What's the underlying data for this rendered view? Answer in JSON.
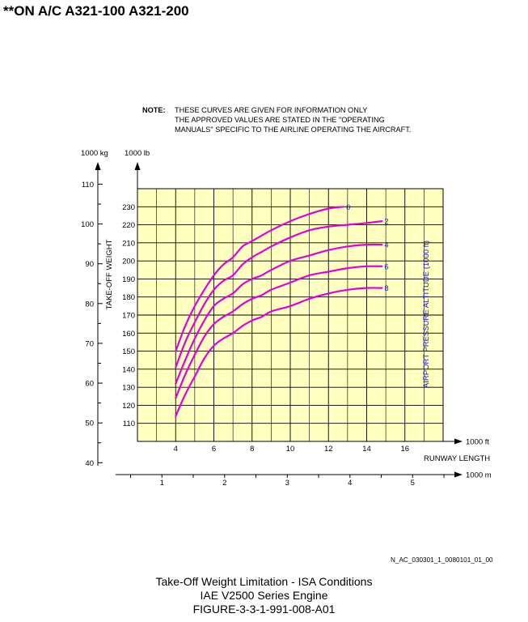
{
  "header": {
    "applicability": "**ON A/C A321-100 A321-200"
  },
  "note": {
    "label": "NOTE:",
    "lines": [
      "THESE CURVES ARE GIVEN FOR INFORMATION ONLY",
      "THE APPROVED VALUES ARE STATED IN THE \"OPERATING",
      "MANUALS\" SPECIFIC TO THE AIRLINE OPERATING THE AIRCRAFT."
    ]
  },
  "colors": {
    "grid_fill": "#ffffc0",
    "curve": "#e000e0",
    "curve_label": "#1a1ad0",
    "axis": "#000000"
  },
  "chart_data": {
    "type": "line",
    "title": "Take-Off Weight Limitation - ISA Conditions",
    "xlabel": "RUNWAY LENGTH",
    "ylabel": "TAKE-OFF WEIGHT",
    "legend_title": "AIRPORT PRESSURE ALTITUDE (1000 ft)",
    "x_unit_primary": "1000 ft",
    "x_unit_secondary": "1000 m",
    "y_unit_primary": "1000 lb",
    "y_unit_secondary": "1000 kg",
    "xlim_ft": [
      2,
      18
    ],
    "ylim_lb": [
      100,
      240
    ],
    "x_ticks_ft": [
      "4",
      "6",
      "8",
      "10",
      "12",
      "14",
      "16"
    ],
    "x_ticks_m": [
      "1",
      "2",
      "3",
      "4",
      "5"
    ],
    "y_ticks_lb": [
      "110",
      "120",
      "130",
      "140",
      "150",
      "160",
      "170",
      "180",
      "190",
      "200",
      "210",
      "220",
      "230"
    ],
    "y_ticks_kg": [
      "40",
      "50",
      "60",
      "70",
      "80",
      "90",
      "100",
      "110"
    ],
    "grid": true,
    "series": [
      {
        "name": "0",
        "x": [
          4,
          4.5,
          5,
          5.5,
          6,
          6.5,
          7,
          7.5,
          8,
          8.5,
          9,
          10,
          11,
          12,
          12.8
        ],
        "y": [
          150,
          164,
          175,
          184,
          192,
          198,
          202,
          208,
          211,
          214,
          217,
          222,
          226,
          229,
          230
        ]
      },
      {
        "name": "2",
        "x": [
          4,
          4.5,
          5,
          5.5,
          6,
          6.5,
          7,
          7.5,
          8,
          8.5,
          9,
          10,
          11,
          12,
          13,
          14,
          14.8
        ],
        "y": [
          141,
          155,
          166,
          176,
          184,
          189,
          192,
          198,
          202,
          205,
          208,
          213,
          217,
          219,
          220,
          221,
          222
        ]
      },
      {
        "name": "4",
        "x": [
          4,
          4.5,
          5,
          5.5,
          6,
          6.5,
          7,
          7.5,
          8,
          8.5,
          9,
          10,
          11,
          12,
          13,
          14,
          14.8
        ],
        "y": [
          132,
          145,
          157,
          167,
          175,
          179,
          182,
          187,
          190,
          192,
          195,
          200,
          203,
          206,
          208,
          209,
          209
        ]
      },
      {
        "name": "6",
        "x": [
          4,
          4.5,
          5,
          5.5,
          6,
          6.5,
          7,
          7.5,
          8,
          8.5,
          9,
          10,
          11,
          12,
          13,
          14,
          14.8
        ],
        "y": [
          124,
          137,
          148,
          158,
          165,
          169,
          172,
          176,
          179,
          181,
          184,
          188,
          192,
          194,
          196,
          197,
          197
        ]
      },
      {
        "name": "8",
        "x": [
          4,
          4.5,
          5,
          5.5,
          6,
          6.5,
          7,
          7.5,
          8,
          8.5,
          9,
          10,
          11,
          12,
          13,
          14,
          14.8
        ],
        "y": [
          114,
          126,
          136,
          146,
          153,
          157,
          160,
          164,
          167,
          169,
          172,
          175,
          179,
          182,
          184,
          185,
          185
        ]
      }
    ]
  },
  "footer": {
    "file_ref": "N_AC_030301_1_0080101_01_00",
    "caption_lines": [
      "Take-Off Weight Limitation - ISA Conditions",
      "IAE V2500 Series Engine",
      "FIGURE-3-3-1-991-008-A01"
    ]
  }
}
